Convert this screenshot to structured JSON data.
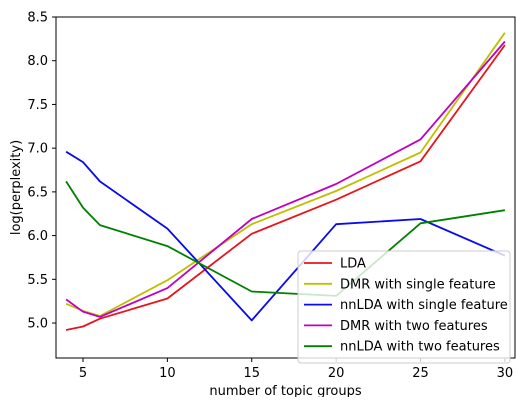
{
  "chart_data": {
    "type": "line",
    "title": "",
    "xlabel": "number of topic groups",
    "ylabel": "log(perplexity)",
    "xlim": [
      3.4,
      30.6
    ],
    "ylim": [
      4.6,
      8.5
    ],
    "xticks": [
      5,
      10,
      15,
      20,
      25,
      30
    ],
    "yticks": [
      5.0,
      5.5,
      6.0,
      6.5,
      7.0,
      7.5,
      8.0,
      8.5
    ],
    "grid": false,
    "legend_position": "bottom-right",
    "series": [
      {
        "name": "LDA",
        "color": "#e8141c",
        "x": [
          4,
          5,
          6,
          10,
          15,
          20,
          25,
          30
        ],
        "y": [
          4.92,
          4.96,
          5.05,
          5.28,
          6.02,
          6.41,
          6.85,
          8.18
        ]
      },
      {
        "name": "DMR with single feature",
        "color": "#bfbf00",
        "x": [
          4,
          5,
          6,
          10,
          15,
          20,
          25,
          30
        ],
        "y": [
          5.22,
          5.14,
          5.08,
          5.49,
          6.13,
          6.51,
          6.95,
          8.32
        ]
      },
      {
        "name": "nnLDA with single feature",
        "color": "#0a0aee",
        "x": [
          4,
          5,
          6,
          10,
          15,
          20,
          25,
          30
        ],
        "y": [
          6.96,
          6.84,
          6.62,
          6.08,
          5.03,
          6.13,
          6.19,
          5.77
        ]
      },
      {
        "name": "DMR with two features",
        "color": "#bf00bf",
        "x": [
          4,
          5,
          6,
          10,
          15,
          20,
          25,
          30
        ],
        "y": [
          5.27,
          5.13,
          5.07,
          5.4,
          6.19,
          6.59,
          7.1,
          8.22
        ]
      },
      {
        "name": "nnLDA with two features",
        "color": "#008000",
        "x": [
          4,
          5,
          6,
          10,
          15,
          20,
          25,
          30
        ],
        "y": [
          6.62,
          6.32,
          6.12,
          5.88,
          5.36,
          5.31,
          6.14,
          6.29
        ]
      }
    ]
  }
}
